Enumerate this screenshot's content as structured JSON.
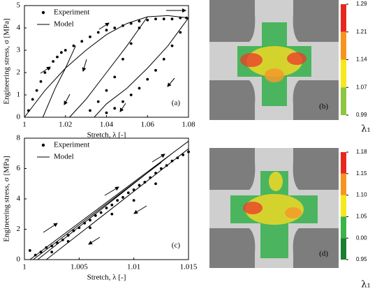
{
  "chart_data": [
    {
      "type": "scatter",
      "panel_label": "(a)",
      "xlabel": "Stretch, λ [-]",
      "ylabel": "Engineering stress, σ [MPa]",
      "xlim": [
        1,
        1.08
      ],
      "xticks": [
        1,
        1.02,
        1.04,
        1.06,
        1.08
      ],
      "ylim": [
        0,
        5
      ],
      "yticks": [
        0,
        1,
        2,
        3,
        4,
        5
      ],
      "legend": "upper left",
      "series": [
        {
          "name": "Experiment",
          "color": "#000000",
          "marker": "dot",
          "x": [
            1.002,
            1.004,
            1.006,
            1.008,
            1.01,
            1.012,
            1.014,
            1.016,
            1.018,
            1.02,
            1.024,
            1.028,
            1.032,
            1.036,
            1.04,
            1.044,
            1.048,
            1.052,
            1.056,
            1.06,
            1.064,
            1.068,
            1.072,
            1.076,
            1.079,
            1.076,
            1.072,
            1.068,
            1.064,
            1.06,
            1.056,
            1.052,
            1.048,
            1.044,
            1.04,
            1.032,
            1.036,
            1.04,
            1.044,
            1.048,
            1.052,
            1.056
          ],
          "y": [
            0.3,
            0.8,
            1.2,
            1.6,
            2.0,
            2.2,
            2.5,
            2.7,
            2.9,
            3.0,
            3.2,
            3.4,
            3.6,
            3.8,
            3.9,
            4.0,
            4.1,
            4.2,
            4.3,
            4.35,
            4.4,
            4.4,
            4.4,
            4.45,
            4.45,
            3.8,
            3.2,
            2.6,
            2.1,
            1.7,
            1.3,
            1.0,
            0.7,
            0.4,
            0.2,
            0.3,
            0.7,
            1.2,
            1.8,
            2.6,
            3.3,
            4.0
          ]
        },
        {
          "name": "Model",
          "color": "#000000",
          "marker": "line",
          "x": [
            1.0,
            1.01,
            1.02,
            1.03,
            1.04,
            1.05,
            1.06,
            1.07,
            1.08,
            null,
            1.08,
            1.07,
            1.06,
            1.05,
            1.04,
            1.034,
            null,
            1.06,
            1.05,
            1.04,
            1.03,
            1.022,
            null,
            1.009,
            1.015,
            1.02,
            1.025
          ],
          "y": [
            0,
            1.2,
            2.2,
            3.0,
            3.7,
            4.2,
            4.5,
            4.55,
            4.45,
            null,
            4.45,
            3.2,
            2.2,
            1.3,
            0.6,
            0,
            null,
            4.5,
            3.2,
            2.0,
            0.8,
            0,
            null,
            0,
            1.3,
            2.2,
            3.2
          ]
        }
      ]
    },
    {
      "type": "scatter",
      "panel_label": "(c)",
      "xlabel": "Stretch, λ [-]",
      "ylabel": "Engineering stress, σ [MPa]",
      "xlim": [
        1,
        1.015
      ],
      "xticks": [
        1,
        1.005,
        1.01,
        1.015
      ],
      "ylim": [
        0,
        8
      ],
      "yticks": [
        0,
        2,
        4,
        6,
        8
      ],
      "legend": "upper left",
      "series": [
        {
          "name": "Experiment",
          "color": "#000000",
          "marker": "dot",
          "x": [
            1.0005,
            1.001,
            1.0015,
            1.002,
            1.0025,
            1.003,
            1.0035,
            1.004,
            1.0045,
            1.005,
            1.0055,
            1.006,
            1.0065,
            1.007,
            1.0075,
            1.008,
            1.0085,
            1.009,
            1.0095,
            1.01,
            1.0105,
            1.011,
            1.0115,
            1.012,
            1.0125,
            1.013,
            1.0135,
            1.014,
            1.0145,
            1.015,
            1.0025,
            1.004,
            1.006,
            1.008,
            1.01,
            1.012
          ],
          "y": [
            0.6,
            0.3,
            0.5,
            0.8,
            0.9,
            1.1,
            1.3,
            1.6,
            1.9,
            2.1,
            2.4,
            2.6,
            2.9,
            3.1,
            3.4,
            3.6,
            3.9,
            4.1,
            4.4,
            4.6,
            4.9,
            5.1,
            5.4,
            5.7,
            6.0,
            6.2,
            6.5,
            6.7,
            6.9,
            7.1,
            0.5,
            1.2,
            2.1,
            3.0,
            3.9,
            5.0
          ]
        },
        {
          "name": "Model",
          "color": "#000000",
          "marker": "line",
          "x": [
            1.0005,
            1.015,
            null,
            1.0012,
            1.0135,
            null,
            1.002,
            1.015,
            null,
            1.0008,
            1.0125
          ],
          "y": [
            0,
            7.8,
            null,
            0,
            7.0,
            null,
            0,
            7.3,
            null,
            0,
            6.4
          ]
        }
      ]
    }
  ],
  "maps": [
    {
      "panel_label": "(b)",
      "symbol": "λ₁",
      "colorbar_labels": [
        "1.29",
        "1.21",
        "1.14",
        "1.07",
        "0.99"
      ],
      "colorbar_colors": [
        "#e8261e",
        "#f7941d",
        "#f6e81a",
        "#8dc63f"
      ]
    },
    {
      "panel_label": "(d)",
      "symbol": "λ₁",
      "colorbar_labels": [
        "1.18",
        "1.15",
        "1.10",
        "1.05",
        "0.00",
        "0.95"
      ],
      "colorbar_colors": [
        "#e8261e",
        "#f7941d",
        "#f6e81a",
        "#3cb44b",
        "#1a7f2e"
      ]
    }
  ]
}
